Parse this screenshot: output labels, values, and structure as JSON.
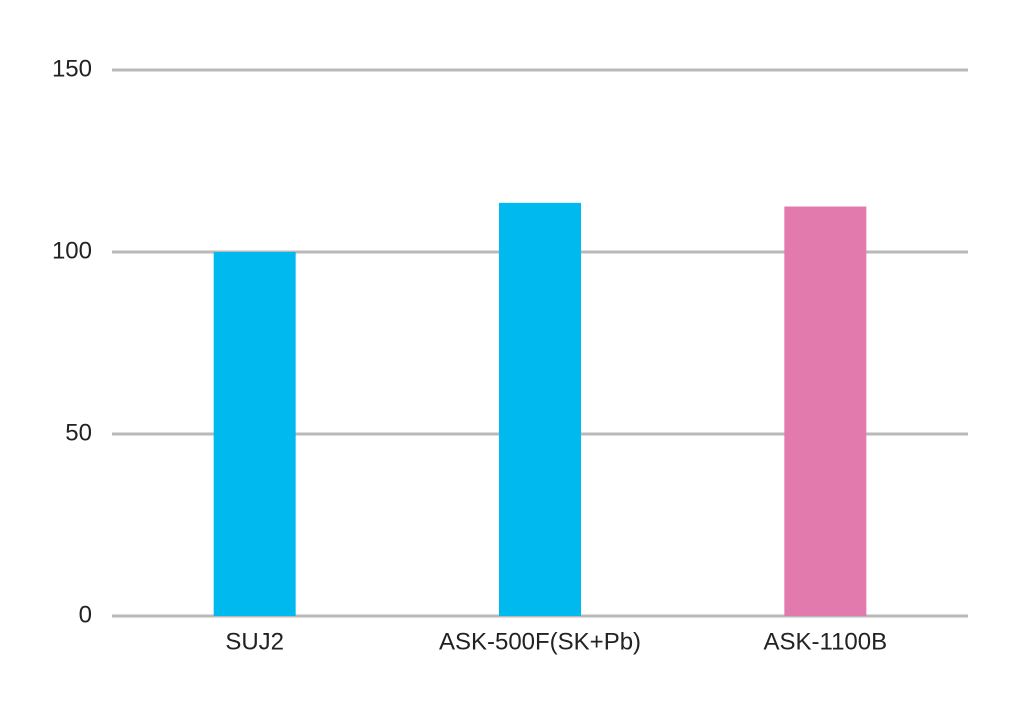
{
  "chart_data": {
    "type": "bar",
    "categories": [
      "SUJ2",
      "ASK-500F(SK+Pb)",
      "ASK-1100B"
    ],
    "values": [
      100,
      113.5,
      112.5
    ],
    "colors": [
      "#00b9ef",
      "#00b9ef",
      "#e27aad"
    ],
    "ylim": [
      0,
      150
    ],
    "yticks": [
      0,
      50,
      100,
      150
    ],
    "grid": true
  }
}
